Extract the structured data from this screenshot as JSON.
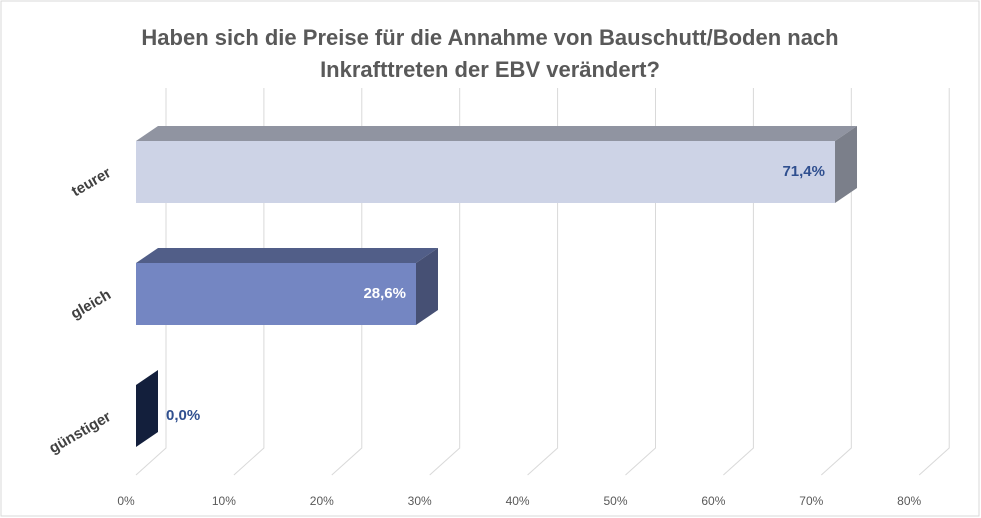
{
  "chart_data": {
    "type": "bar3d",
    "title": "Haben sich die Preise für die Annahme von Bauschutt/Boden nach Inkrafttreten der EBV verändert?",
    "categories": [
      "teurer",
      "gleich",
      "günstiger"
    ],
    "values": [
      71.4,
      28.6,
      0.0
    ],
    "value_labels": [
      "71,4%",
      "28,6%",
      "0,0%"
    ],
    "colors": [
      "#cdd3e6",
      "#7486c2",
      "#1f3464"
    ],
    "xlim": [
      0,
      80
    ],
    "xticks": [
      {
        "value": 0,
        "label": "0%"
      },
      {
        "value": 10,
        "label": "10%"
      },
      {
        "value": 20,
        "label": "20%"
      },
      {
        "value": 30,
        "label": "30%"
      },
      {
        "value": 40,
        "label": "40%"
      },
      {
        "value": 50,
        "label": "50%"
      },
      {
        "value": 60,
        "label": "60%"
      },
      {
        "value": 70,
        "label": "70%"
      },
      {
        "value": 80,
        "label": "80%"
      }
    ],
    "grid": true
  }
}
